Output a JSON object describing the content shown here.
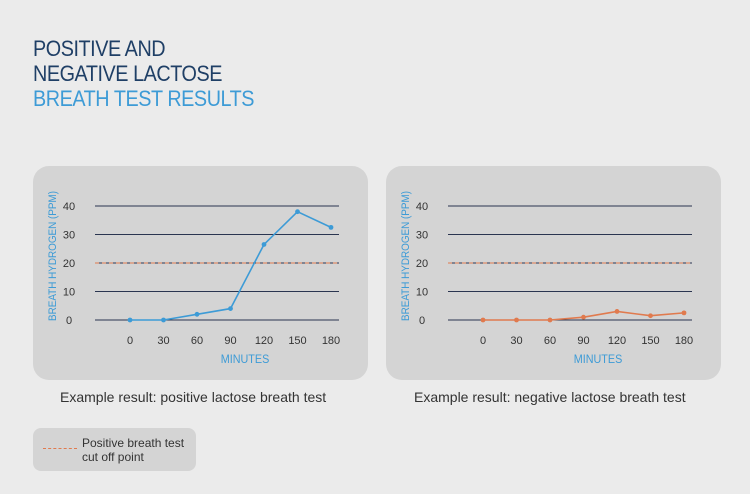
{
  "title": {
    "line1": "POSITIVE AND",
    "line2": "NEGATIVE LACTOSE",
    "line3": "BREATH TEST RESULTS"
  },
  "colors": {
    "title_dark": "#1f3f66",
    "title_accent": "#3d9bd6",
    "positive_series": "#3d9bd6",
    "negative_series": "#e07a4e",
    "cutoff_line": "#e07a4e",
    "gridline": "#2a3550"
  },
  "chart_data": [
    {
      "type": "line",
      "xlabel": "MINUTES",
      "ylabel": "BREATH HYDROGEN (PPM)",
      "x": [
        0,
        30,
        60,
        90,
        120,
        150,
        180
      ],
      "x_ticks": [
        "0",
        "30",
        "60",
        "90",
        "120",
        "150",
        "180"
      ],
      "y_ticks": [
        "0",
        "10",
        "20",
        "30",
        "40"
      ],
      "ylim": [
        0,
        40
      ],
      "grid": true,
      "cutoff": 20,
      "series": [
        {
          "values": [
            0,
            0,
            2,
            4,
            26.5,
            38,
            32.5
          ]
        }
      ],
      "caption": "Example result: positive lactose breath test"
    },
    {
      "type": "line",
      "xlabel": "MINUTES",
      "ylabel": "BREATH HYDROGEN (PPM)",
      "x": [
        0,
        30,
        60,
        90,
        120,
        150,
        180
      ],
      "x_ticks": [
        "0",
        "30",
        "60",
        "90",
        "120",
        "150",
        "180"
      ],
      "y_ticks": [
        "0",
        "10",
        "20",
        "30",
        "40"
      ],
      "ylim": [
        0,
        40
      ],
      "grid": true,
      "cutoff": 20,
      "series": [
        {
          "values": [
            0,
            0,
            0,
            1,
            3,
            1.5,
            2.5
          ]
        }
      ],
      "caption": "Example result: negative lactose breath test"
    }
  ],
  "legend": {
    "line1": "Positive breath test",
    "line2": "cut off point"
  }
}
